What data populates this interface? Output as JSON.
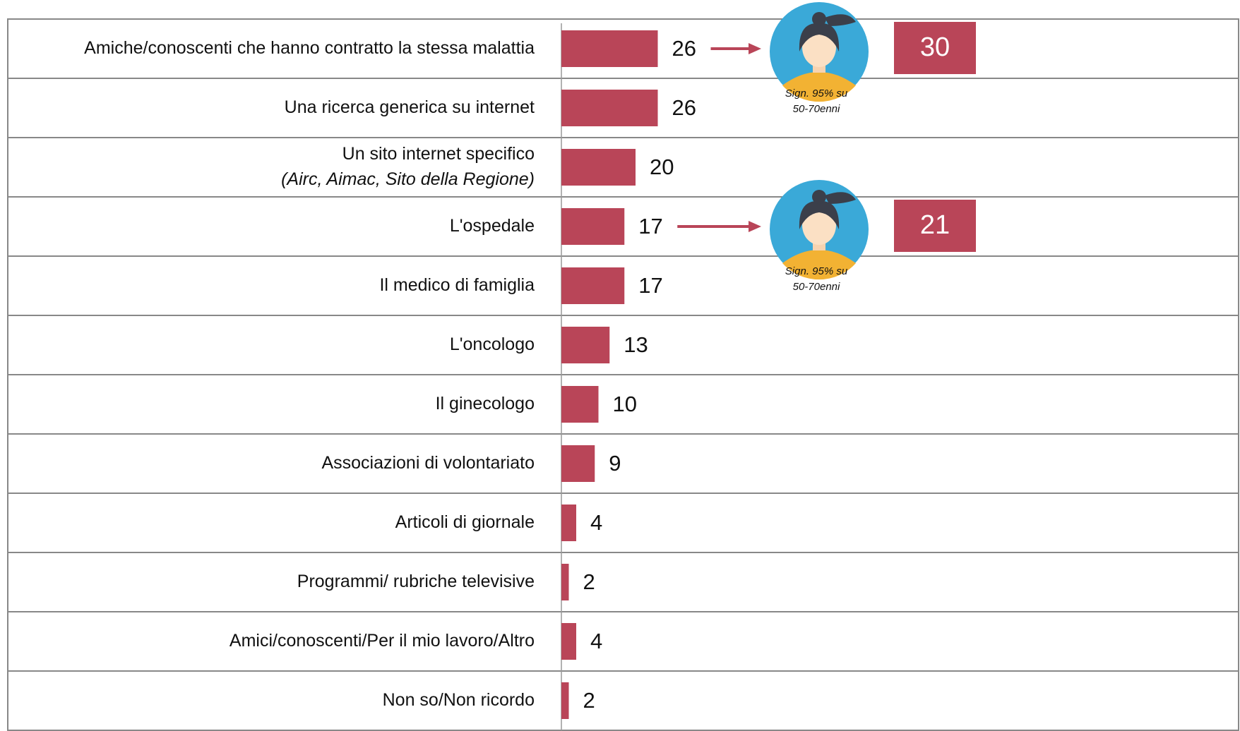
{
  "chart_data": {
    "type": "bar",
    "orientation": "horizontal",
    "categories": [
      "Amiche/conoscenti che hanno contratto la stessa malattia",
      "Una ricerca generica su internet",
      "Un sito internet specifico\n(Airc, Aimac, Sito della Regione)",
      "L'ospedale",
      "Il medico di famiglia",
      "L'oncologo",
      "Il ginecologo",
      "Associazioni di volontariato",
      "Articoli di giornale",
      "Programmi/ rubriche televisive",
      "Amici/conoscenti/Per il mio lavoro/Altro",
      "Non so/Non ricordo"
    ],
    "values": [
      26,
      26,
      20,
      17,
      17,
      13,
      10,
      9,
      4,
      2,
      4,
      2
    ],
    "color": "#b94558",
    "xlim": [
      0,
      100
    ],
    "subgroup_values": [
      30,
      null,
      null,
      21,
      null,
      null,
      null,
      null,
      null,
      null,
      null,
      null
    ],
    "subgroup_note": [
      "Sign. 95% su",
      "50-70enni"
    ]
  }
}
